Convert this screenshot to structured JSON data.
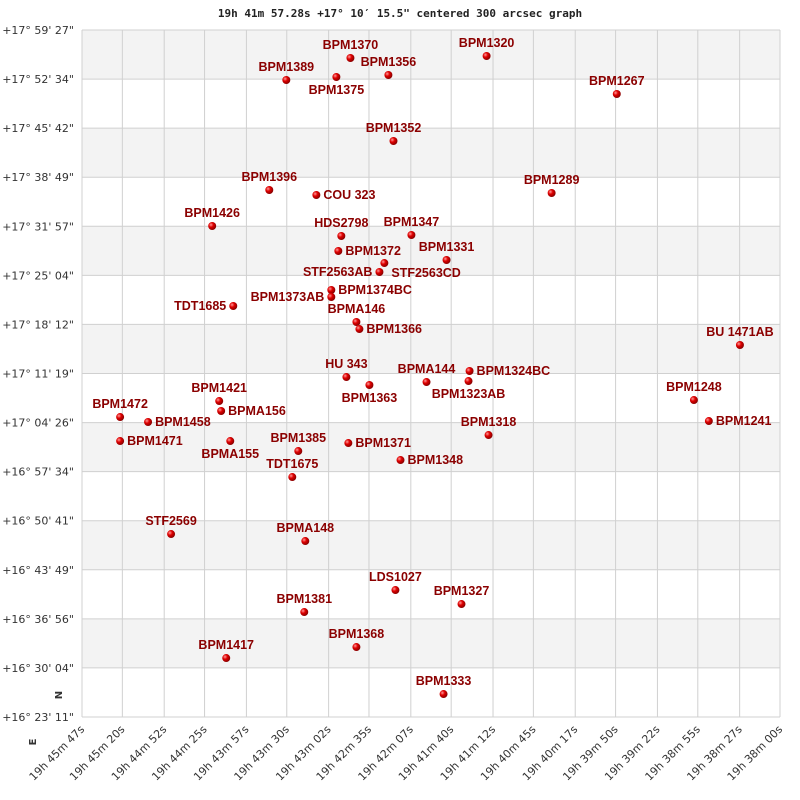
{
  "chart_data": {
    "type": "scatter",
    "title": "19h 41m 57.28s +17° 10′ 15.5\" centered 300 arcsec graph",
    "xlabel": "",
    "ylabel": "",
    "x_axis": "right ascension (decreasing to the right)",
    "xlim": [
      "19h 45m 47s",
      "19h 38m 00s"
    ],
    "ylim": [
      "+16° 23' 11\"",
      "+17° 59' 27\""
    ],
    "x_ticks": [
      "19h 45m 47s",
      "19h 45m 20s",
      "19h 44m 52s",
      "19h 44m 25s",
      "19h 43m 57s",
      "19h 43m 30s",
      "19h 43m 02s",
      "19h 42m 35s",
      "19h 42m 07s",
      "19h 41m 40s",
      "19h 41m 12s",
      "19h 40m 45s",
      "19h 40m 17s",
      "19h 39m 50s",
      "19h 39m 22s",
      "19h 38m 55s",
      "19h 38m 27s",
      "19h 38m 00s"
    ],
    "y_ticks": [
      "+17° 59' 27\"",
      "+17° 52' 34\"",
      "+17° 45' 42\"",
      "+17° 38' 49\"",
      "+17° 31' 57\"",
      "+17° 25' 04\"",
      "+17° 18' 12\"",
      "+17° 11' 19\"",
      "+17° 04' 26\"",
      "+16° 57' 34\"",
      "+16° 50' 41\"",
      "+16° 43' 49\"",
      "+16° 36' 56\"",
      "+16° 30' 04\"",
      "+16° 23' 11\""
    ],
    "grid": true,
    "orientation_labels": {
      "north": "N",
      "east": "E"
    },
    "colors": {
      "star": "#e00000",
      "label": "#8b0000",
      "band": "#f3f3f3",
      "grid": "#d0d0d0"
    },
    "points": [
      {
        "name": "BPM1370",
        "ra": "19h 42m 47.4s",
        "dec": "+17° 55' 31.6\""
      },
      {
        "name": "BPM1375",
        "ra": "19h 42m 56.8s",
        "dec": "+17° 52' 51.8\""
      },
      {
        "name": "BPM1389",
        "ra": "19h 43m 30.3s",
        "dec": "+17° 52' 26.6\""
      },
      {
        "name": "BPM1356",
        "ra": "19h 42m 22.0s",
        "dec": "+17° 53' 08.6\""
      },
      {
        "name": "BPM1320",
        "ra": "19h 41m 16.3s",
        "dec": "+17° 55' 48.4\""
      },
      {
        "name": "BPM1267",
        "ra": "19h 39m 49.2s",
        "dec": "+17° 50' 28.9\""
      },
      {
        "name": "BPM1352",
        "ra": "19h 42m 18.6s",
        "dec": "+17° 43' 53.7\""
      },
      {
        "name": "BPM1396",
        "ra": "19h 43m 41.7s",
        "dec": "+17° 37' 01.7\""
      },
      {
        "name": "COU 323",
        "ra": "19h 43m 10.2s",
        "dec": "+17° 36' 19.7\""
      },
      {
        "name": "BPM1289",
        "ra": "19h 40m 32.8s",
        "dec": "+17° 36' 36.5\""
      },
      {
        "name": "BPM1426",
        "ra": "19h 44m 19.9s",
        "dec": "+17° 31' 59.0\""
      },
      {
        "name": "BPM1347",
        "ra": "19h 42m 06.6s",
        "dec": "+17° 30' 43.4\""
      },
      {
        "name": "HDS2798",
        "ra": "19h 42m 53.5s",
        "dec": "+17° 30' 35.0\""
      },
      {
        "name": "BPM1372",
        "ra": "19h 42m 55.5s",
        "dec": "+17° 28' 28.8\""
      },
      {
        "name": "STF2563CD",
        "ra": "19h 42m 24.7s",
        "dec": "+17° 26' 47.9\""
      },
      {
        "name": "STF2563AB",
        "ra": "19h 42m 28.0s",
        "dec": "+17° 25' 32.3\""
      },
      {
        "name": "BPM1331",
        "ra": "19h 41m 43.1s",
        "dec": "+17° 27' 13.2\""
      },
      {
        "name": "BPM1374BC",
        "ra": "19h 43m 00.2s",
        "dec": "+17° 23' 00.9\""
      },
      {
        "name": "BPM1373AB",
        "ra": "19h 43m 00.2s",
        "dec": "+17° 22' 02.1\""
      },
      {
        "name": "TDT1685",
        "ra": "19h 44m 05.8s",
        "dec": "+17° 20' 46.4\""
      },
      {
        "name": "BPMA146",
        "ra": "19h 42m 43.4s",
        "dec": "+17° 18' 31.9\""
      },
      {
        "name": "BPM1366",
        "ra": "19h 42m 41.4s",
        "dec": "+17° 17' 33.0\""
      },
      {
        "name": "BU 1471AB",
        "ra": "19h 38m 26.8s",
        "dec": "+17° 15' 18.5\""
      },
      {
        "name": "HU  343",
        "ra": "19h 42m 50.1s",
        "dec": "+17° 10' 49.4\""
      },
      {
        "name": "BPM1363",
        "ra": "19h 42m 34.7s",
        "dec": "+17° 09' 42.2\""
      },
      {
        "name": "BPMA144",
        "ra": "19h 41m 56.5s",
        "dec": "+17° 10' 07.4\""
      },
      {
        "name": "BPM1324BC",
        "ra": "19h 41m 27.7s",
        "dec": "+17° 11' 39.9\""
      },
      {
        "name": "BPM1323AB",
        "ra": "19h 41m 28.4s",
        "dec": "+17° 10' 15.8\""
      },
      {
        "name": "BPM1421",
        "ra": "19h 44m 15.2s",
        "dec": "+17° 07' 27.6\""
      },
      {
        "name": "BPMA156",
        "ra": "19h 44m 13.9s",
        "dec": "+17° 06' 03.6\""
      },
      {
        "name": "BPM1472",
        "ra": "19h 45m 21.5s",
        "dec": "+17° 05' 13.1\""
      },
      {
        "name": "BPM1458",
        "ra": "19h 45m 02.8s",
        "dec": "+17° 04' 31.1\""
      },
      {
        "name": "BPM1471",
        "ra": "19h 45m 21.5s",
        "dec": "+17° 01' 51.3\""
      },
      {
        "name": "BPMA155",
        "ra": "19h 44m 07.8s",
        "dec": "+17° 01' 51.3\""
      },
      {
        "name": "BPM1248",
        "ra": "19h 38m 57.6s",
        "dec": "+17° 07' 36.0\""
      },
      {
        "name": "BPM1241",
        "ra": "19h 38m 47.6s",
        "dec": "+17° 04' 39.5\""
      },
      {
        "name": "BPM1318",
        "ra": "19h 41m 15.0s",
        "dec": "+17° 02' 41.8\""
      },
      {
        "name": "BPM1385",
        "ra": "19h 43m 22.3s",
        "dec": "+17° 00' 27.2\""
      },
      {
        "name": "BPM1371",
        "ra": "19h 42m 48.8s",
        "dec": "+17° 01' 34.5\""
      },
      {
        "name": "BPM1348",
        "ra": "19h 42m 13.9s",
        "dec": "+16° 59' 11.6\""
      },
      {
        "name": "TDT1675",
        "ra": "19h 43m 26.3s",
        "dec": "+16° 56' 48.6\""
      },
      {
        "name": "STF2569",
        "ra": "19h 44m 47.4s",
        "dec": "+16° 48' 49.4\""
      },
      {
        "name": "BPMA148",
        "ra": "19h 43m 17.6s",
        "dec": "+16° 47' 50.5\""
      },
      {
        "name": "LDS1027",
        "ra": "19h 42m 17.3s",
        "dec": "+16° 40' 58.5\""
      },
      {
        "name": "BPM1327",
        "ra": "19h 41m 33.1s",
        "dec": "+16° 39' 00.8\""
      },
      {
        "name": "BPM1381",
        "ra": "19h 43m 18.3s",
        "dec": "+16° 37' 53.5\""
      },
      {
        "name": "BPM1368",
        "ra": "19h 42m 43.4s",
        "dec": "+16° 32' 59.3\""
      },
      {
        "name": "BPM1417",
        "ra": "19h 44m 10.5s",
        "dec": "+16° 31' 26.8\""
      },
      {
        "name": "BPM1333",
        "ra": "19h 41m 45.1s",
        "dec": "+16° 26' 24.1\""
      }
    ]
  }
}
